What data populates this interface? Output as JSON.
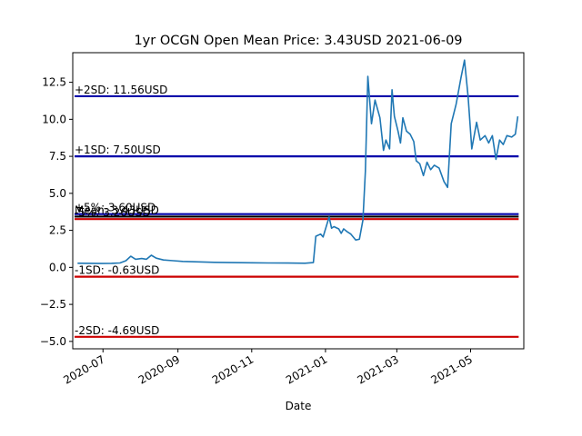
{
  "chart_data": {
    "type": "line",
    "title": "1yr OCGN Open Mean Price: 3.43USD 2021-06-09",
    "xlabel": "Date",
    "ylabel": "",
    "x_range": [
      "2020-06-09",
      "2021-06-09"
    ],
    "ylim": [
      -5.5,
      14.5
    ],
    "y_ticks": [
      -5.0,
      -2.5,
      0.0,
      2.5,
      5.0,
      7.5,
      10.0,
      12.5
    ],
    "y_tick_labels": [
      "−5.0",
      "−2.5",
      "0.0",
      "2.5",
      "5.0",
      "7.5",
      "10.0",
      "12.5"
    ],
    "x_ticks": [
      "2020-07-01",
      "2020-09-01",
      "2020-11-01",
      "2021-01-01",
      "2021-03-01",
      "2021-05-01"
    ],
    "x_tick_labels": [
      "2020-07",
      "2020-09",
      "2020-11",
      "2021-01",
      "2021-03",
      "2021-05"
    ],
    "grid": false,
    "series": [
      {
        "color": "#1f77b4",
        "points": [
          [
            "2020-06-10",
            0.28
          ],
          [
            "2020-06-20",
            0.27
          ],
          [
            "2020-06-30",
            0.26
          ],
          [
            "2020-07-08",
            0.27
          ],
          [
            "2020-07-15",
            0.3
          ],
          [
            "2020-07-20",
            0.45
          ],
          [
            "2020-07-24",
            0.75
          ],
          [
            "2020-07-28",
            0.55
          ],
          [
            "2020-08-02",
            0.6
          ],
          [
            "2020-08-06",
            0.55
          ],
          [
            "2020-08-10",
            0.82
          ],
          [
            "2020-08-14",
            0.62
          ],
          [
            "2020-08-20",
            0.5
          ],
          [
            "2020-08-28",
            0.45
          ],
          [
            "2020-09-05",
            0.4
          ],
          [
            "2020-09-15",
            0.38
          ],
          [
            "2020-10-01",
            0.34
          ],
          [
            "2020-10-15",
            0.32
          ],
          [
            "2020-11-01",
            0.31
          ],
          [
            "2020-11-15",
            0.3
          ],
          [
            "2020-12-01",
            0.29
          ],
          [
            "2020-12-15",
            0.28
          ],
          [
            "2020-12-22",
            0.32
          ],
          [
            "2020-12-24",
            2.1
          ],
          [
            "2020-12-28",
            2.25
          ],
          [
            "2020-12-30",
            2.05
          ],
          [
            "2021-01-04",
            3.4
          ],
          [
            "2021-01-06",
            2.65
          ],
          [
            "2021-01-08",
            2.75
          ],
          [
            "2021-01-12",
            2.6
          ],
          [
            "2021-01-14",
            2.3
          ],
          [
            "2021-01-16",
            2.6
          ],
          [
            "2021-01-19",
            2.4
          ],
          [
            "2021-01-22",
            2.25
          ],
          [
            "2021-01-26",
            1.85
          ],
          [
            "2021-01-29",
            1.9
          ],
          [
            "2021-02-01",
            3.2
          ],
          [
            "2021-02-03",
            6.5
          ],
          [
            "2021-02-05",
            12.9
          ],
          [
            "2021-02-08",
            9.7
          ],
          [
            "2021-02-11",
            11.3
          ],
          [
            "2021-02-15",
            10.1
          ],
          [
            "2021-02-18",
            7.9
          ],
          [
            "2021-02-20",
            8.6
          ],
          [
            "2021-02-23",
            8.0
          ],
          [
            "2021-02-25",
            12.0
          ],
          [
            "2021-02-27",
            10.2
          ],
          [
            "2021-03-02",
            9.2
          ],
          [
            "2021-03-04",
            8.4
          ],
          [
            "2021-03-06",
            10.1
          ],
          [
            "2021-03-09",
            9.2
          ],
          [
            "2021-03-12",
            9.0
          ],
          [
            "2021-03-15",
            8.5
          ],
          [
            "2021-03-17",
            7.2
          ],
          [
            "2021-03-20",
            7.0
          ],
          [
            "2021-03-23",
            6.2
          ],
          [
            "2021-03-26",
            7.1
          ],
          [
            "2021-03-29",
            6.6
          ],
          [
            "2021-04-01",
            6.9
          ],
          [
            "2021-04-05",
            6.7
          ],
          [
            "2021-04-09",
            5.8
          ],
          [
            "2021-04-12",
            5.4
          ],
          [
            "2021-04-15",
            9.7
          ],
          [
            "2021-04-19",
            11.0
          ],
          [
            "2021-04-23",
            12.8
          ],
          [
            "2021-04-26",
            14.0
          ],
          [
            "2021-04-29",
            11.5
          ],
          [
            "2021-05-02",
            8.0
          ],
          [
            "2021-05-06",
            9.8
          ],
          [
            "2021-05-09",
            8.6
          ],
          [
            "2021-05-13",
            8.9
          ],
          [
            "2021-05-16",
            8.4
          ],
          [
            "2021-05-19",
            8.9
          ],
          [
            "2021-05-22",
            7.3
          ],
          [
            "2021-05-25",
            8.6
          ],
          [
            "2021-05-28",
            8.3
          ],
          [
            "2021-05-31",
            8.9
          ],
          [
            "2021-06-04",
            8.8
          ],
          [
            "2021-06-07",
            9.0
          ],
          [
            "2021-06-09",
            10.2
          ]
        ]
      }
    ],
    "reference_lines": [
      {
        "label": "+2SD: 11.56USD",
        "value": 11.56,
        "color": "#0000aa"
      },
      {
        "label": "+1SD: 7.50USD",
        "value": 7.5,
        "color": "#0000aa"
      },
      {
        "label": "+5%: 3.60USD",
        "value": 3.6,
        "color": "#0000aa"
      },
      {
        "label": "Mean: 3.43USD",
        "value": 3.43,
        "color": "#000000"
      },
      {
        "label": "-5%: 3.26USD",
        "value": 3.26,
        "color": "#cc0000"
      },
      {
        "label": "-1SD: -0.63USD",
        "value": -0.63,
        "color": "#cc0000"
      },
      {
        "label": "-2SD: -4.69USD",
        "value": -4.69,
        "color": "#cc0000"
      }
    ]
  }
}
